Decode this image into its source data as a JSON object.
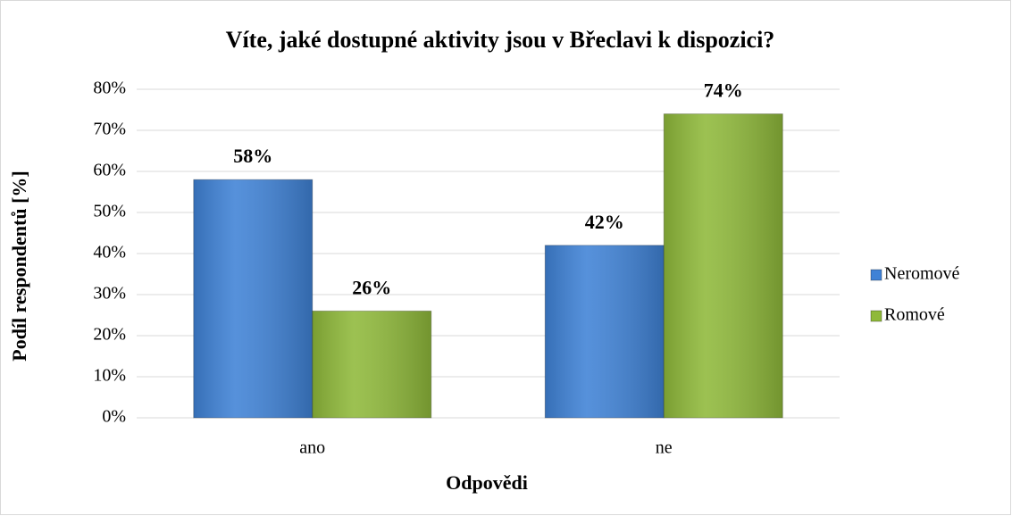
{
  "chart_data": {
    "type": "bar",
    "title": "Víte, jaké dostupné aktivity jsou v Břeclavi k dispozici?",
    "x_label": "Odpovědi",
    "y_label": "Podíl respondentů [%]",
    "categories": [
      "ano",
      "ne"
    ],
    "series": [
      {
        "name": "Neromové",
        "color": "#3f82d6",
        "values": [
          58,
          42
        ],
        "value_labels": [
          "58%",
          "42%"
        ]
      },
      {
        "name": "Romové",
        "color": "#8fb93a",
        "values": [
          26,
          74
        ],
        "value_labels": [
          "26%",
          "74%"
        ]
      }
    ],
    "ylim": [
      0,
      80
    ],
    "yticks": [
      {
        "value": 0,
        "label": "0%"
      },
      {
        "value": 10,
        "label": "10%"
      },
      {
        "value": 20,
        "label": "20%"
      },
      {
        "value": 30,
        "label": "30%"
      },
      {
        "value": 40,
        "label": "40%"
      },
      {
        "value": 50,
        "label": "50%"
      },
      {
        "value": 60,
        "label": "60%"
      },
      {
        "value": 70,
        "label": "70%"
      },
      {
        "value": 80,
        "label": "80%"
      }
    ],
    "grid": true,
    "legend": "right"
  }
}
